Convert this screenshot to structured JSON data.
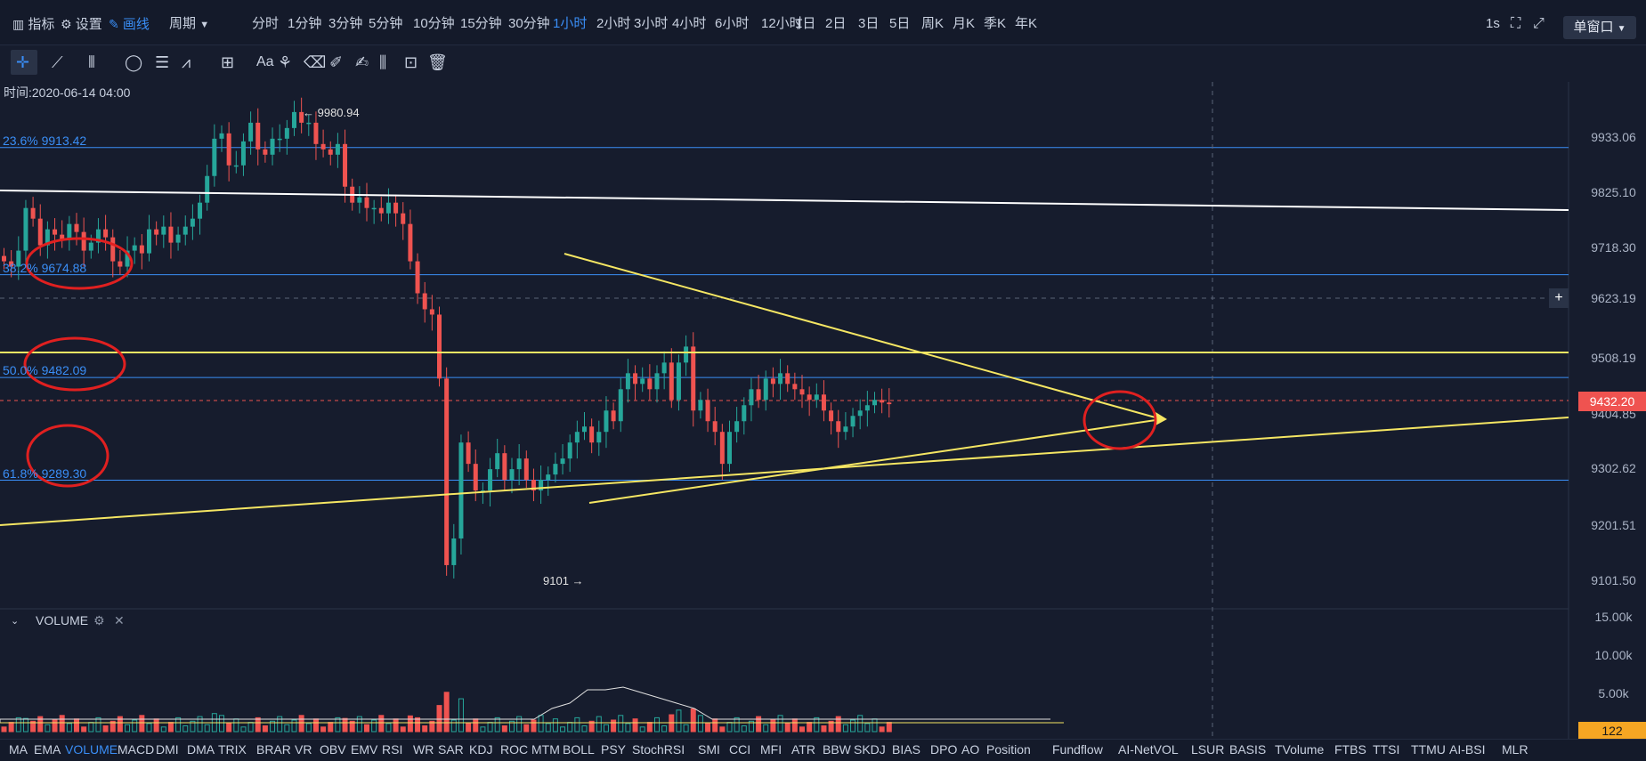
{
  "topbar": {
    "indicator_label": "指标",
    "settings_label": "设置",
    "draw_label": "画线",
    "period_label": "周期",
    "periods": [
      "分时",
      "1分钟",
      "3分钟",
      "5分钟",
      "10分钟",
      "15分钟",
      "30分钟",
      "1小时",
      "2小时",
      "3小时",
      "4小时",
      "6小时",
      "12小时",
      "1日",
      "2日",
      "3日",
      "5日",
      "周K",
      "月K",
      "季K",
      "年K"
    ],
    "active_period": "1小时",
    "refresh": "1s",
    "window_mode": "单窗口"
  },
  "chart": {
    "time_label": "时间:2020-06-14 04:00",
    "high_label": "← 9980.94",
    "low_label": "9101 →",
    "price_ticks": [
      "9933.06",
      "9825.10",
      "9718.30",
      "9623.19",
      "9508.19",
      "9404.85",
      "9302.62",
      "9201.51",
      "9101.50"
    ],
    "current_price": "9432.20",
    "fib_levels": [
      {
        "label": "23.6% 9913.42",
        "price": 9913.42
      },
      {
        "label": "38.2% 9674.88",
        "price": 9674.88
      },
      {
        "label": "50.0% 9482.09",
        "price": 9482.09
      },
      {
        "label": "61.8% 9289.30",
        "price": 9289.3
      }
    ],
    "volume_label": "VOLUME",
    "volume_ticks": [
      "15.00k",
      "10.00k",
      "5.00k"
    ],
    "volume_current": "122",
    "colors": {
      "up": "#26a69a",
      "down": "#ef5350",
      "fib": "#3a8ef6",
      "trend_yellow": "#f5e663",
      "trend_white": "#ffffff",
      "circle": "#e02020"
    }
  },
  "indicators": [
    "MA",
    "EMA",
    "VOLUME",
    "MACD",
    "DMI",
    "DMA",
    "TRIX",
    "BRAR",
    "VR",
    "OBV",
    "EMV",
    "RSI",
    "WR",
    "SAR",
    "KDJ",
    "ROC",
    "MTM",
    "BOLL",
    "PSY",
    "StochRSI",
    "SMI",
    "CCI",
    "MFI",
    "ATR",
    "BBW",
    "SKDJ",
    "BIAS",
    "DPO",
    "AO",
    "Position",
    "Fundflow",
    "AI-NetVOL",
    "LSUR",
    "BASIS",
    "TVolume",
    "FTBS",
    "TTSI",
    "TTMU",
    "AI-BSI",
    "MLR"
  ],
  "active_indicator": "VOLUME"
}
